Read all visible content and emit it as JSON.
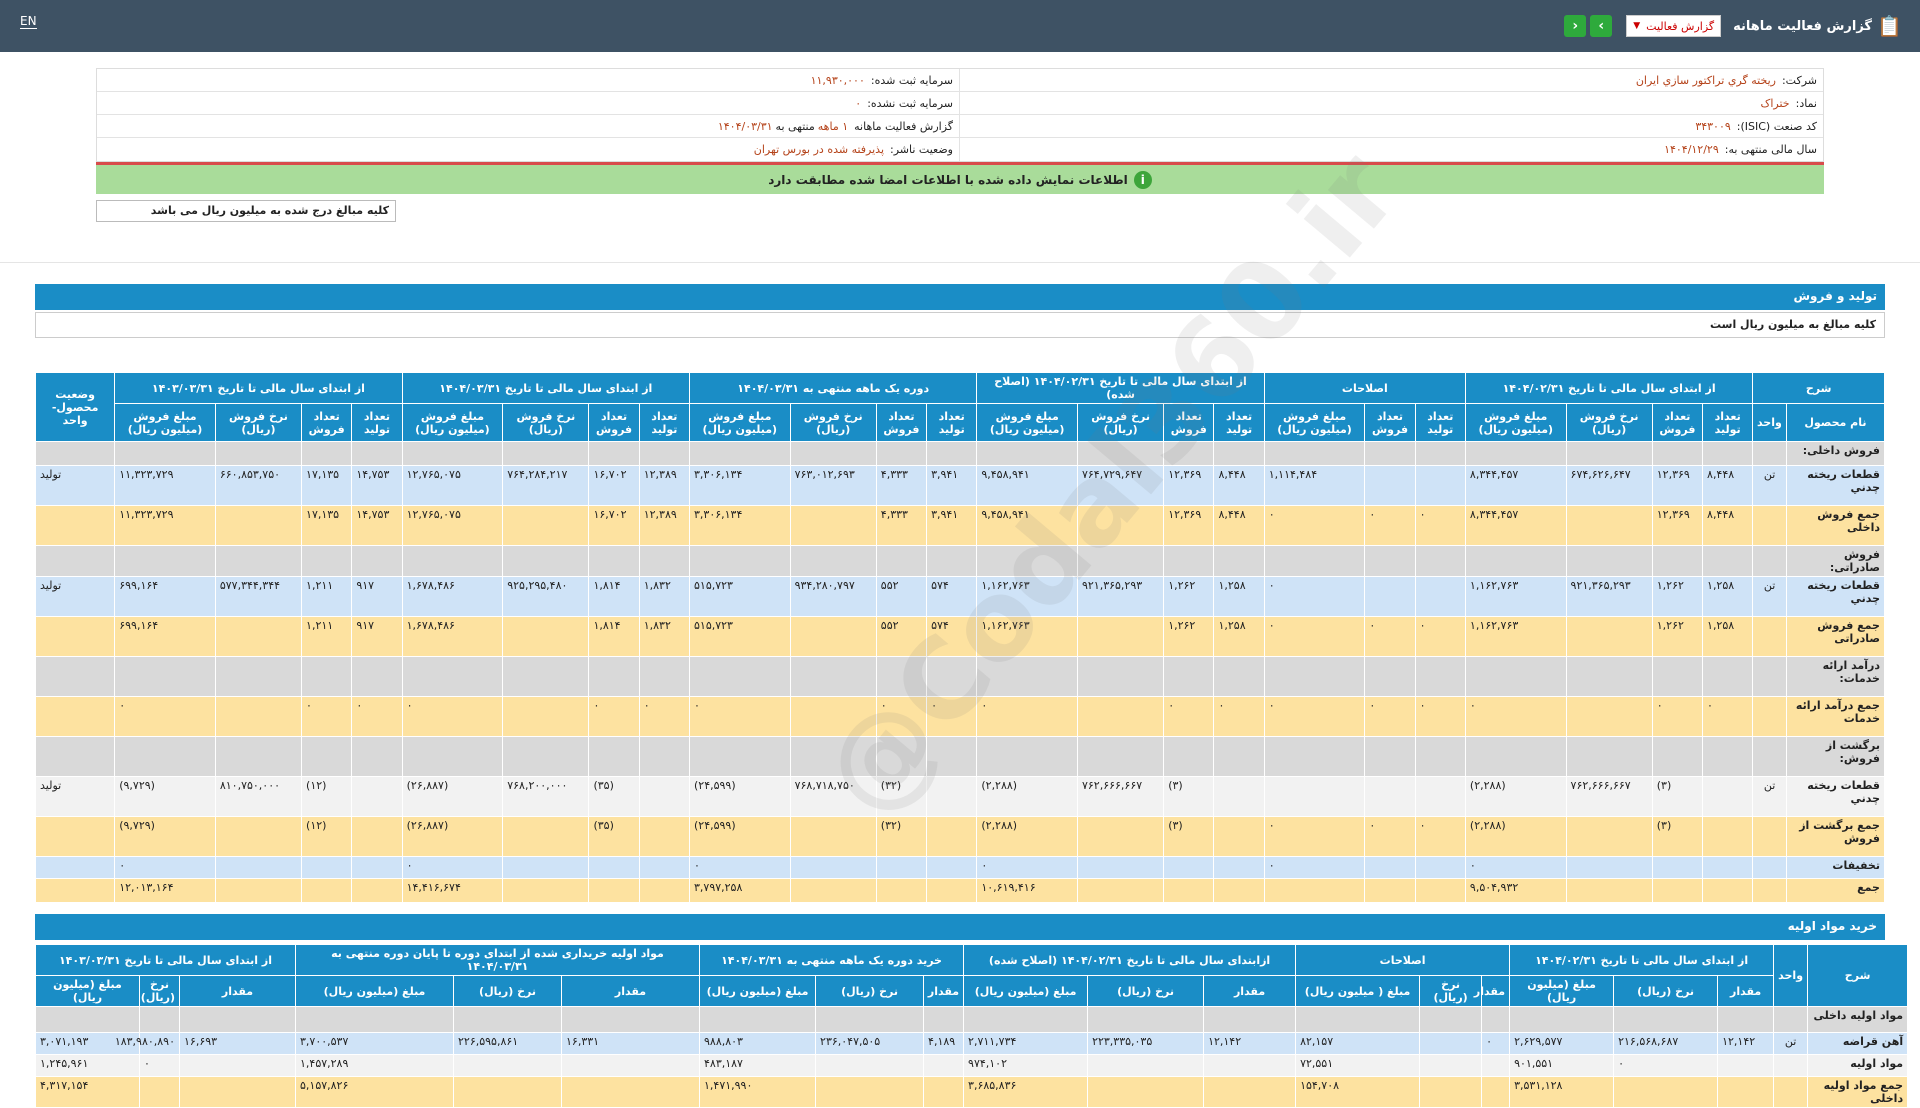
{
  "header": {
    "title": "گزارش فعالیت ماهانه",
    "select_label": "گزارش فعالیت",
    "lang": "EN"
  },
  "info": {
    "company_label": "شرکت:",
    "company": "ريخته گري تراكتور سازي ايران",
    "capital_label": "سرمایه ثبت شده:",
    "capital": "۱۱,۹۳۰,۰۰۰",
    "symbol_label": "نماد:",
    "symbol": "ختراک",
    "unreg_capital_label": "سرمایه ثبت نشده:",
    "unreg_capital": "۰",
    "isic_label": "کد صنعت (ISIC):",
    "isic": "۳۴۳۰۰۹",
    "report_label": "گزارش فعالیت ماهانه",
    "report_value": "۱ ماهه",
    "report_suffix": "منتهی به",
    "report_date": "۱۴۰۴/۰۳/۳۱",
    "fy_label": "سال مالی منتهی به:",
    "fy": "۱۴۰۴/۱۲/۲۹",
    "status_label": "وضعیت ناشر:",
    "status": "پذیرفته شده در بورس تهران"
  },
  "verify_msg": "اطلاعات نمایش داده شده با اطلاعات امضا شده مطابقت دارد",
  "note": "کلیه مبالغ درج شده به میلیون ریال می باشد",
  "watermark": "@Codal360.ir",
  "production": {
    "title": "تولید و فروش",
    "subtitle": "کلیه مبالغ به میلیون ریال است",
    "groups": [
      "شرح",
      "از ابتدای سال مالی تا تاریخ ۱۴۰۴/۰۲/۳۱",
      "اصلاحات",
      "از ابتدای سال مالی تا تاریخ ۱۴۰۴/۰۲/۳۱ (اصلاح شده)",
      "دوره یک ماهه منتهی به ۱۴۰۴/۰۳/۳۱",
      "از ابتدای سال مالی تا تاریخ ۱۴۰۴/۰۳/۳۱",
      "از ابتدای سال مالی تا تاریخ ۱۴۰۳/۰۳/۳۱",
      "وضعیت محصول-واحد"
    ],
    "cols": [
      "نام محصول",
      "واحد",
      "تعداد تولید",
      "تعداد فروش",
      "نرخ فروش (ریال)",
      "مبلغ فروش (میلیون ریال)",
      "تعداد تولید",
      "تعداد فروش",
      "مبلغ فروش (میلیون ریال)",
      "تعداد تولید",
      "تعداد فروش",
      "نرخ فروش (ریال)",
      "مبلغ فروش (میلیون ریال)",
      "تعداد تولید",
      "تعداد فروش",
      "نرخ فروش (ریال)",
      "مبلغ فروش (میلیون ریال)",
      "تعداد تولید",
      "تعداد فروش",
      "نرخ فروش (ریال)",
      "مبلغ فروش (میلیون ریال)",
      "تعداد تولید",
      "تعداد فروش",
      "نرخ فروش (ریال)",
      "مبلغ فروش (میلیون ریال)"
    ],
    "rows": [
      {
        "style": "gray",
        "cells": [
          "فروش داخلی:",
          "",
          "",
          "",
          "",
          "",
          "",
          "",
          "",
          "",
          "",
          "",
          "",
          "",
          "",
          "",
          "",
          "",
          "",
          "",
          "",
          "",
          "",
          "",
          "",
          ""
        ]
      },
      {
        "style": "blue",
        "cells": [
          "قطعات ريخته چدني",
          "تن",
          "۸,۴۴۸",
          "۱۲,۳۶۹",
          "۶۷۴,۶۲۶,۶۴۷",
          "۸,۳۴۴,۴۵۷",
          "",
          "",
          "۱,۱۱۴,۴۸۴",
          "۸,۴۴۸",
          "۱۲,۳۶۹",
          "۷۶۴,۷۲۹,۶۴۷",
          "۹,۴۵۸,۹۴۱",
          "۳,۹۴۱",
          "۴,۳۳۳",
          "۷۶۳,۰۱۲,۶۹۳",
          "۳,۳۰۶,۱۳۴",
          "۱۲,۳۸۹",
          "۱۶,۷۰۲",
          "۷۶۴,۲۸۴,۲۱۷",
          "۱۲,۷۶۵,۰۷۵",
          "۱۴,۷۵۳",
          "۱۷,۱۳۵",
          "۶۶۰,۸۵۳,۷۵۰",
          "۱۱,۳۲۳,۷۲۹",
          "تولید"
        ]
      },
      {
        "style": "yel",
        "cells": [
          "جمع فروش داخلی",
          "",
          "۸,۴۴۸",
          "۱۲,۳۶۹",
          "",
          "۸,۳۴۴,۴۵۷",
          "۰",
          "۰",
          "۰",
          "۸,۴۴۸",
          "۱۲,۳۶۹",
          "",
          "۹,۴۵۸,۹۴۱",
          "۳,۹۴۱",
          "۴,۳۳۳",
          "",
          "۳,۳۰۶,۱۳۴",
          "۱۲,۳۸۹",
          "۱۶,۷۰۲",
          "",
          "۱۲,۷۶۵,۰۷۵",
          "۱۴,۷۵۳",
          "۱۷,۱۳۵",
          "",
          "۱۱,۳۲۳,۷۲۹",
          ""
        ]
      },
      {
        "style": "gray",
        "cells": [
          "فروش صادراتی:",
          "",
          "",
          "",
          "",
          "",
          "",
          "",
          "",
          "",
          "",
          "",
          "",
          "",
          "",
          "",
          "",
          "",
          "",
          "",
          "",
          "",
          "",
          "",
          "",
          ""
        ]
      },
      {
        "style": "blue",
        "cells": [
          "قطعات ريخته چدني",
          "تن",
          "۱,۲۵۸",
          "۱,۲۶۲",
          "۹۲۱,۳۶۵,۲۹۳",
          "۱,۱۶۲,۷۶۳",
          "",
          "",
          "۰",
          "۱,۲۵۸",
          "۱,۲۶۲",
          "۹۲۱,۳۶۵,۲۹۳",
          "۱,۱۶۲,۷۶۳",
          "۵۷۴",
          "۵۵۲",
          "۹۳۴,۲۸۰,۷۹۷",
          "۵۱۵,۷۲۳",
          "۱,۸۳۲",
          "۱,۸۱۴",
          "۹۲۵,۲۹۵,۴۸۰",
          "۱,۶۷۸,۴۸۶",
          "۹۱۷",
          "۱,۲۱۱",
          "۵۷۷,۳۴۴,۳۴۴",
          "۶۹۹,۱۶۴",
          "تولید"
        ]
      },
      {
        "style": "yel",
        "cells": [
          "جمع فروش صادراتی",
          "",
          "۱,۲۵۸",
          "۱,۲۶۲",
          "",
          "۱,۱۶۲,۷۶۳",
          "۰",
          "۰",
          "۰",
          "۱,۲۵۸",
          "۱,۲۶۲",
          "",
          "۱,۱۶۲,۷۶۳",
          "۵۷۴",
          "۵۵۲",
          "",
          "۵۱۵,۷۲۳",
          "۱,۸۳۲",
          "۱,۸۱۴",
          "",
          "۱,۶۷۸,۴۸۶",
          "۹۱۷",
          "۱,۲۱۱",
          "",
          "۶۹۹,۱۶۴",
          ""
        ]
      },
      {
        "style": "gray",
        "cells": [
          "درآمد ارائه خدمات:",
          "",
          "",
          "",
          "",
          "",
          "",
          "",
          "",
          "",
          "",
          "",
          "",
          "",
          "",
          "",
          "",
          "",
          "",
          "",
          "",
          "",
          "",
          "",
          "",
          ""
        ]
      },
      {
        "style": "yel",
        "cells": [
          "جمع درآمد ارائه خدمات",
          "",
          "۰",
          "۰",
          "",
          "۰",
          "۰",
          "۰",
          "۰",
          "۰",
          "۰",
          "",
          "۰",
          "۰",
          "۰",
          "",
          "۰",
          "۰",
          "۰",
          "",
          "۰",
          "۰",
          "۰",
          "",
          "۰",
          ""
        ]
      },
      {
        "style": "gray",
        "cells": [
          "برگشت از فروش:",
          "",
          "",
          "",
          "",
          "",
          "",
          "",
          "",
          "",
          "",
          "",
          "",
          "",
          "",
          "",
          "",
          "",
          "",
          "",
          "",
          "",
          "",
          "",
          "",
          ""
        ]
      },
      {
        "style": "white",
        "cells": [
          "قطعات ريخته چدني",
          "تن",
          "",
          "(۳)",
          "۷۶۲,۶۶۶,۶۶۷",
          "(۲,۲۸۸)",
          "",
          "",
          "",
          "",
          "(۳)",
          "۷۶۲,۶۶۶,۶۶۷",
          "(۲,۲۸۸)",
          "",
          "(۳۲)",
          "۷۶۸,۷۱۸,۷۵۰",
          "(۲۴,۵۹۹)",
          "",
          "(۳۵)",
          "۷۶۸,۲۰۰,۰۰۰",
          "(۲۶,۸۸۷)",
          "",
          "(۱۲)",
          "۸۱۰,۷۵۰,۰۰۰",
          "(۹,۷۲۹)",
          "تولید"
        ]
      },
      {
        "style": "yel",
        "cells": [
          "جمع برگشت از فروش",
          "",
          "",
          "(۳)",
          "",
          "(۲,۲۸۸)",
          "۰",
          "۰",
          "۰",
          "",
          "(۳)",
          "",
          "(۲,۲۸۸)",
          "",
          "(۳۲)",
          "",
          "(۲۴,۵۹۹)",
          "",
          "(۳۵)",
          "",
          "(۲۶,۸۸۷)",
          "",
          "(۱۲)",
          "",
          "(۹,۷۲۹)",
          ""
        ]
      },
      {
        "style": "blue",
        "cells": [
          "تخفیفات",
          "",
          "",
          "",
          "",
          "۰",
          "",
          "",
          "۰",
          "",
          "",
          "",
          "۰",
          "",
          "",
          "",
          "۰",
          "",
          "",
          "",
          "۰",
          "",
          "",
          "",
          "۰",
          ""
        ]
      },
      {
        "style": "yel",
        "cells": [
          "جمع",
          "",
          "",
          "",
          "",
          "۹,۵۰۴,۹۳۲",
          "",
          "",
          "",
          "",
          "",
          "",
          "۱۰,۶۱۹,۴۱۶",
          "",
          "",
          "",
          "۳,۷۹۷,۲۵۸",
          "",
          "",
          "",
          "۱۴,۴۱۶,۶۷۴",
          "",
          "",
          "",
          "۱۲,۰۱۳,۱۶۴",
          ""
        ]
      }
    ]
  },
  "materials": {
    "title": "خرید مواد اولیه",
    "groups": [
      "شرح",
      "واحد",
      "از ابتدای سال مالی تا تاریخ ۱۴۰۴/۰۲/۳۱",
      "اصلاحات",
      "ازابتدای سال مالی تا تاریخ ۱۴۰۴/۰۲/۳۱ (اصلاح شده)",
      "خرید دوره یک ماهه منتهی به ۱۴۰۴/۰۳/۳۱",
      "مواد اولیه خریداری شده از ابتدای دوره تا پایان دوره منتهی به ۱۴۰۴/۰۳/۳۱",
      "از ابتدای سال مالی تا تاریخ ۱۴۰۳/۰۳/۳۱"
    ],
    "cols": [
      "مقدار",
      "نرخ (ریال)",
      "مبلغ (میلیون ریال)",
      "مقدار",
      "نرخ (ریال)",
      "مبلغ ( میلیون ریال)",
      "مقدار",
      "نرخ (ریال)",
      "مبلغ (میلیون ریال)",
      "مقدار",
      "نرخ (ریال)",
      "مبلغ (میلیون ریال)",
      "مقدار",
      "نرخ (ریال)",
      "مبلغ (میلیون ریال)",
      "مقدار",
      "نرخ (ریال)",
      "مبلغ (میلیون ریال)"
    ],
    "rows": [
      {
        "style": "gray",
        "cells": [
          "مواد اولیه داخلی",
          "",
          "",
          "",
          "",
          "",
          "",
          "",
          "",
          "",
          "",
          "",
          "",
          "",
          "",
          "",
          "",
          "",
          "",
          ""
        ]
      },
      {
        "style": "blue",
        "cells": [
          "آهن قراضه",
          "تن",
          "۱۲,۱۴۲",
          "۲۱۶,۵۶۸,۶۸۷",
          "۲,۶۲۹,۵۷۷",
          "۰",
          "",
          "۸۲,۱۵۷",
          "۱۲,۱۴۲",
          "۲۲۳,۳۳۵,۰۳۵",
          "۲,۷۱۱,۷۳۴",
          "۴,۱۸۹",
          "۲۳۶,۰۴۷,۵۰۵",
          "۹۸۸,۸۰۳",
          "۱۶,۳۳۱",
          "۲۲۶,۵۹۵,۸۶۱",
          "۳,۷۰۰,۵۳۷",
          "۱۶,۶۹۳",
          "۱۸۳,۹۸۰,۸۹۰",
          "۳,۰۷۱,۱۹۳"
        ]
      },
      {
        "style": "white",
        "cells": [
          "مواد اولیه",
          "",
          "",
          "۰",
          "۹۰۱,۵۵۱",
          "",
          "",
          "۷۲,۵۵۱",
          "",
          "",
          "۹۷۴,۱۰۲",
          "",
          "",
          "۴۸۳,۱۸۷",
          "",
          "",
          "۱,۴۵۷,۲۸۹",
          "",
          "۰",
          "۱,۲۴۵,۹۶۱"
        ]
      },
      {
        "style": "yel",
        "cells": [
          "جمع مواد اولیه داخلی",
          "",
          "",
          "",
          "۳,۵۳۱,۱۲۸",
          "",
          "",
          "۱۵۴,۷۰۸",
          "",
          "",
          "۳,۶۸۵,۸۳۶",
          "",
          "",
          "۱,۴۷۱,۹۹۰",
          "",
          "",
          "۵,۱۵۷,۸۲۶",
          "",
          "",
          "۴,۳۱۷,۱۵۴"
        ]
      }
    ]
  }
}
